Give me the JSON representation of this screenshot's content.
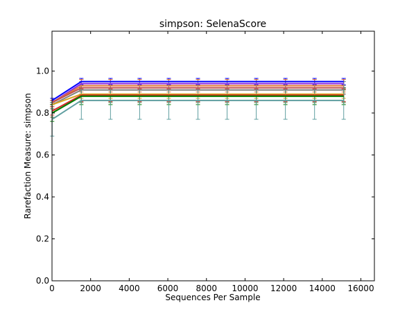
{
  "chart_data": {
    "type": "line",
    "title": "simpson: SelenaScore",
    "xlabel": "Sequences Per Sample",
    "ylabel": "Rarefaction Measure: simpson",
    "xlim": [
      0,
      16700
    ],
    "ylim": [
      0.0,
      1.19
    ],
    "xticks": [
      0,
      2000,
      4000,
      6000,
      8000,
      10000,
      12000,
      14000,
      16000
    ],
    "yticks": [
      0.0,
      0.2,
      0.4,
      0.6,
      0.8,
      1.0
    ],
    "x": [
      10,
      1520,
      3030,
      4540,
      6050,
      7560,
      9070,
      10580,
      12090,
      13600,
      15110
    ],
    "grid": false,
    "legend": "none",
    "series": [
      {
        "color": "#0000ff",
        "values": [
          0.86,
          0.95,
          0.95,
          0.95,
          0.95,
          0.95,
          0.95,
          0.95,
          0.95,
          0.95,
          0.95
        ],
        "error": [
          0.01,
          0.015,
          0.015,
          0.015,
          0.015,
          0.015,
          0.015,
          0.015,
          0.015,
          0.015,
          0.015
        ]
      },
      {
        "color": "#8a2be2",
        "values": [
          0.85,
          0.94,
          0.94,
          0.94,
          0.94,
          0.94,
          0.94,
          0.94,
          0.94,
          0.94,
          0.94
        ],
        "error": [
          0.01,
          0.02,
          0.02,
          0.02,
          0.02,
          0.02,
          0.02,
          0.02,
          0.02,
          0.02,
          0.02
        ]
      },
      {
        "color": "#e07b39",
        "values": [
          0.85,
          0.93,
          0.93,
          0.93,
          0.93,
          0.93,
          0.93,
          0.93,
          0.93,
          0.93,
          0.93
        ],
        "error": [
          0.01,
          0.03,
          0.03,
          0.03,
          0.03,
          0.03,
          0.03,
          0.03,
          0.03,
          0.03,
          0.03
        ]
      },
      {
        "color": "#c0504d",
        "values": [
          0.85,
          0.92,
          0.92,
          0.92,
          0.92,
          0.92,
          0.92,
          0.92,
          0.92,
          0.92,
          0.92
        ],
        "error": [
          0.01,
          0.03,
          0.03,
          0.03,
          0.03,
          0.03,
          0.03,
          0.03,
          0.03,
          0.03,
          0.03
        ]
      },
      {
        "color": "#808080",
        "values": [
          0.84,
          0.91,
          0.91,
          0.91,
          0.91,
          0.91,
          0.91,
          0.91,
          0.91,
          0.91,
          0.91
        ],
        "error": [
          0.01,
          0.02,
          0.02,
          0.02,
          0.02,
          0.02,
          0.02,
          0.02,
          0.02,
          0.02,
          0.02
        ]
      },
      {
        "color": "#daa520",
        "values": [
          0.84,
          0.89,
          0.89,
          0.89,
          0.89,
          0.89,
          0.89,
          0.89,
          0.89,
          0.89,
          0.89
        ],
        "error": [
          0.01,
          0.02,
          0.02,
          0.02,
          0.02,
          0.02,
          0.02,
          0.02,
          0.02,
          0.02,
          0.02
        ]
      },
      {
        "color": "#d62728",
        "values": [
          0.81,
          0.885,
          0.885,
          0.885,
          0.885,
          0.885,
          0.885,
          0.885,
          0.885,
          0.885,
          0.885
        ],
        "error": [
          0.02,
          0.03,
          0.03,
          0.03,
          0.03,
          0.03,
          0.03,
          0.03,
          0.03,
          0.03,
          0.03
        ]
      },
      {
        "color": "#556b2f",
        "values": [
          0.8,
          0.88,
          0.88,
          0.88,
          0.88,
          0.88,
          0.88,
          0.88,
          0.88,
          0.88,
          0.88
        ],
        "error": [
          0.02,
          0.03,
          0.03,
          0.03,
          0.03,
          0.03,
          0.03,
          0.03,
          0.03,
          0.03,
          0.03
        ]
      },
      {
        "color": "#008000",
        "values": [
          0.8,
          0.88,
          0.88,
          0.88,
          0.88,
          0.88,
          0.88,
          0.88,
          0.88,
          0.88,
          0.88
        ],
        "error": [
          0.04,
          0.04,
          0.04,
          0.04,
          0.04,
          0.04,
          0.04,
          0.04,
          0.04,
          0.04,
          0.04
        ]
      },
      {
        "color": "#5f9ea0",
        "values": [
          0.77,
          0.86,
          0.86,
          0.86,
          0.86,
          0.86,
          0.86,
          0.86,
          0.86,
          0.86,
          0.86
        ],
        "error": [
          0.08,
          0.09,
          0.09,
          0.09,
          0.09,
          0.09,
          0.09,
          0.09,
          0.09,
          0.09,
          0.09
        ]
      }
    ]
  }
}
